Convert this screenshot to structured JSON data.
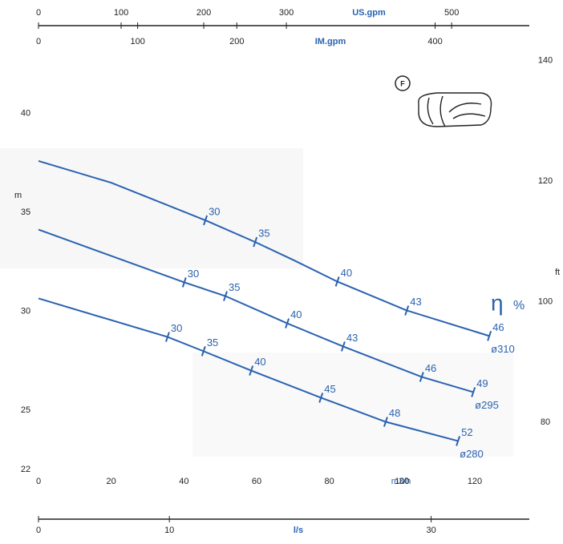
{
  "chart_data": {
    "type": "pump-curve",
    "xlabel": "m3/h",
    "ylabel": "m",
    "y2label": "ft",
    "xlim": [
      0,
      135
    ],
    "xticks": [
      0,
      20,
      40,
      60,
      80,
      100,
      120
    ],
    "ylim": [
      22,
      42.7
    ],
    "yticks": [
      22,
      25,
      30,
      35,
      40
    ],
    "y2lim": [
      72.2,
      140.1
    ],
    "y2ticks": [
      80,
      100,
      120,
      140
    ],
    "us_gpm": {
      "label": "US.gpm",
      "lim": [
        0,
        594
      ],
      "ticks": [
        0,
        100,
        200,
        300,
        500
      ]
    },
    "im_gpm": {
      "label": "IM.gpm",
      "lim": [
        0,
        495
      ],
      "ticks": [
        0,
        100,
        200,
        400
      ]
    },
    "l_s": {
      "label": "l/s",
      "lim": [
        0,
        37.5
      ],
      "ticks": [
        0,
        10,
        30
      ]
    },
    "eta_symbol": "η",
    "eta_unit": "%",
    "color": "#2a62b0",
    "series": [
      {
        "name": "ø310",
        "x": [
          0,
          20,
          45.9,
          59.6,
          70,
          82.2,
          101.3,
          124
        ],
        "values": [
          37.6,
          36.5,
          34.6,
          33.5,
          32.6,
          31.5,
          30.04,
          28.75
        ],
        "eta_points": {
          "x": [
            45.9,
            59.6,
            82.2,
            101.3,
            124
          ],
          "head": [
            34.6,
            33.5,
            31.5,
            30.04,
            28.75
          ],
          "eta": [
            30,
            35,
            40,
            43,
            46
          ]
        }
      },
      {
        "name": "ø295",
        "x": [
          0,
          40.1,
          51.4,
          68.4,
          83.8,
          105.4,
          119.6
        ],
        "values": [
          34.13,
          31.46,
          30.77,
          29.39,
          28.22,
          26.68,
          25.91
        ],
        "eta_points": {
          "x": [
            40.1,
            51.4,
            68.4,
            83.8,
            105.4,
            119.6
          ],
          "head": [
            31.46,
            30.77,
            29.39,
            28.22,
            26.68,
            25.91
          ],
          "eta": [
            30,
            35,
            40,
            43,
            46,
            49
          ]
        }
      },
      {
        "name": "ø280",
        "x": [
          0,
          35.5,
          45.4,
          58.5,
          77.7,
          95.5,
          115.4
        ],
        "values": [
          30.65,
          28.7,
          27.98,
          27.0,
          25.63,
          24.41,
          23.44
        ],
        "eta_points": {
          "x": [
            35.5,
            45.4,
            58.5,
            77.7,
            95.5,
            115.4
          ],
          "head": [
            28.7,
            27.98,
            27.0,
            25.63,
            24.41,
            23.44
          ],
          "eta": [
            30,
            35,
            40,
            45,
            48,
            52
          ]
        }
      }
    ]
  }
}
